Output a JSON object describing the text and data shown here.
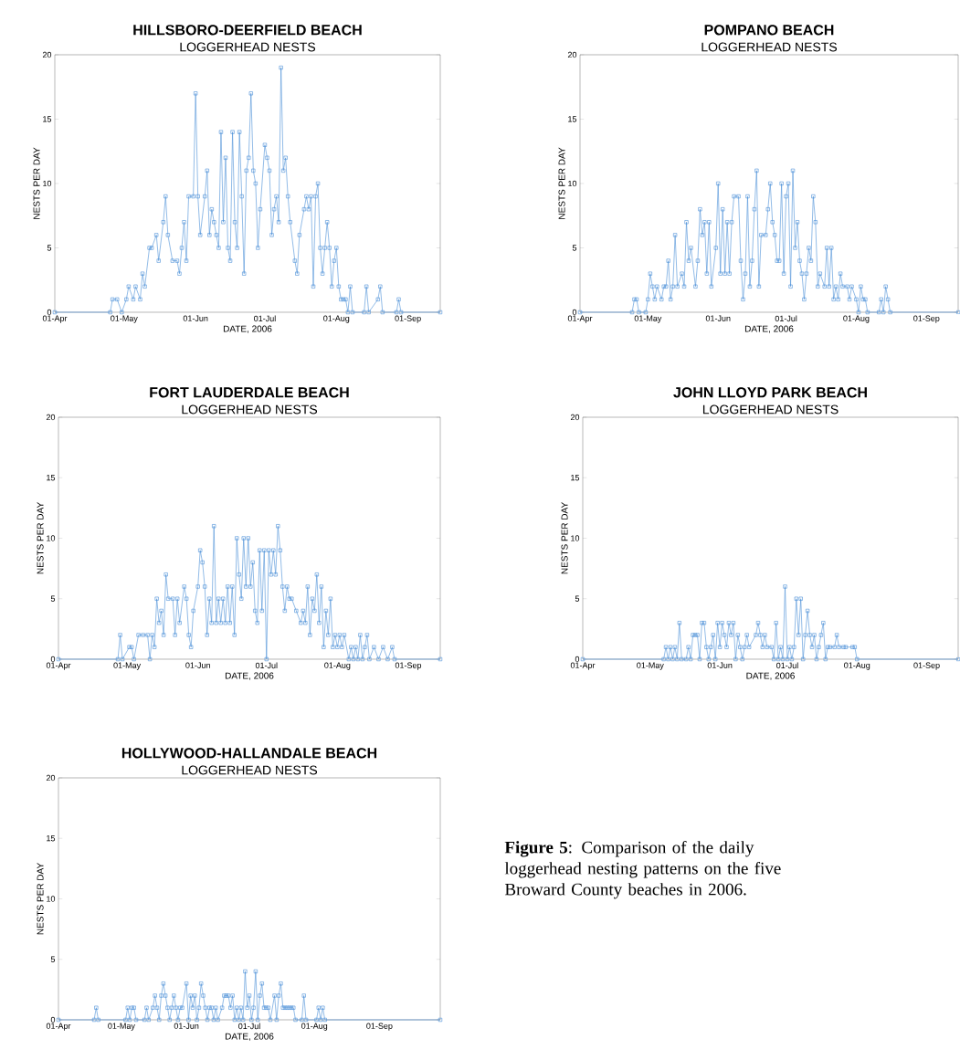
{
  "chart_data": [
    {
      "type": "line",
      "title": "HILLSBORO-DEERFIELD  BEACH",
      "subtitle": "LOGGERHEAD NESTS",
      "xlabel": "DATE, 2006",
      "ylabel": "NESTS PER DAY",
      "color": "#4a8fd6",
      "marker": "square",
      "line_style": "solid",
      "xlim": [
        "2006-04-01",
        "2006-09-15"
      ],
      "ylim": [
        0,
        20
      ],
      "yticks": [
        0,
        5,
        10,
        15,
        20
      ],
      "xticks": [
        {
          "value": "2006-04-01",
          "label": "01-Apr"
        },
        {
          "value": "2006-05-01",
          "label": "01-May"
        },
        {
          "value": "2006-06-01",
          "label": "01-Jun"
        },
        {
          "value": "2006-07-01",
          "label": "01-Jul"
        },
        {
          "value": "2006-08-01",
          "label": "01-Aug"
        },
        {
          "value": "2006-09-01",
          "label": "01-Sep"
        }
      ],
      "x": [
        "2006-04-01",
        "2006-04-25",
        "2006-04-26",
        "2006-04-28",
        "2006-04-30",
        "2006-05-02",
        "2006-05-03",
        "2006-05-05",
        "2006-05-06",
        "2006-05-08",
        "2006-05-09",
        "2006-05-10",
        "2006-05-12",
        "2006-05-13",
        "2006-05-15",
        "2006-05-16",
        "2006-05-18",
        "2006-05-19",
        "2006-05-20",
        "2006-05-22",
        "2006-05-24",
        "2006-05-25",
        "2006-05-26",
        "2006-05-27",
        "2006-05-28",
        "2006-05-29",
        "2006-05-31",
        "2006-06-01",
        "2006-06-02",
        "2006-06-03",
        "2006-06-05",
        "2006-06-06",
        "2006-06-07",
        "2006-06-08",
        "2006-06-09",
        "2006-06-10",
        "2006-06-11",
        "2006-06-12",
        "2006-06-13",
        "2006-06-14",
        "2006-06-15",
        "2006-06-16",
        "2006-06-17",
        "2006-06-18",
        "2006-06-19",
        "2006-06-20",
        "2006-06-21",
        "2006-06-22",
        "2006-06-23",
        "2006-06-24",
        "2006-06-25",
        "2006-06-26",
        "2006-06-27",
        "2006-06-28",
        "2006-06-29",
        "2006-07-01",
        "2006-07-02",
        "2006-07-03",
        "2006-07-04",
        "2006-07-05",
        "2006-07-06",
        "2006-07-07",
        "2006-07-08",
        "2006-07-09",
        "2006-07-10",
        "2006-07-11",
        "2006-07-12",
        "2006-07-14",
        "2006-07-15",
        "2006-07-16",
        "2006-07-18",
        "2006-07-19",
        "2006-07-20",
        "2006-07-21",
        "2006-07-22",
        "2006-07-23",
        "2006-07-24",
        "2006-07-25",
        "2006-07-26",
        "2006-07-27",
        "2006-07-28",
        "2006-07-29",
        "2006-07-30",
        "2006-07-31",
        "2006-08-01",
        "2006-08-02",
        "2006-08-03",
        "2006-08-04",
        "2006-08-05",
        "2006-08-06",
        "2006-08-07",
        "2006-08-08",
        "2006-08-13",
        "2006-08-14",
        "2006-08-15",
        "2006-08-19",
        "2006-08-20",
        "2006-08-21",
        "2006-08-27",
        "2006-08-28",
        "2006-08-29",
        "2006-09-15"
      ],
      "values": [
        0,
        0,
        1,
        1,
        0,
        1,
        2,
        1,
        2,
        1,
        3,
        2,
        5,
        5,
        6,
        4,
        7,
        9,
        6,
        4,
        4,
        3,
        5,
        7,
        4,
        9,
        9,
        17,
        9,
        6,
        9,
        11,
        6,
        8,
        7,
        6,
        5,
        14,
        7,
        12,
        5,
        4,
        14,
        7,
        5,
        14,
        9,
        3,
        11,
        12,
        17,
        11,
        10,
        5,
        8,
        13,
        12,
        11,
        6,
        8,
        9,
        7,
        19,
        11,
        12,
        9,
        7,
        4,
        3,
        6,
        8,
        9,
        8,
        9,
        2,
        9,
        10,
        5,
        3,
        5,
        7,
        5,
        2,
        4,
        5,
        2,
        1,
        1,
        1,
        0,
        2,
        0,
        0,
        2,
        0,
        1,
        2,
        0,
        0,
        1,
        0,
        0
      ]
    },
    {
      "type": "line",
      "title": "POMPANO  BEACH",
      "subtitle": "LOGGERHEAD NESTS",
      "xlabel": "DATE, 2006",
      "ylabel": "NESTS PER DAY",
      "color": "#4a8fd6",
      "marker": "square",
      "line_style": "solid",
      "xlim": [
        "2006-04-01",
        "2006-09-15"
      ],
      "ylim": [
        0,
        20
      ],
      "yticks": [
        0,
        5,
        10,
        15,
        20
      ],
      "xticks": [
        {
          "value": "2006-04-01",
          "label": "01-Apr"
        },
        {
          "value": "2006-05-01",
          "label": "01-May"
        },
        {
          "value": "2006-06-01",
          "label": "01-Jun"
        },
        {
          "value": "2006-07-01",
          "label": "01-Jul"
        },
        {
          "value": "2006-08-01",
          "label": "01-Aug"
        },
        {
          "value": "2006-09-01",
          "label": "01-Sep"
        }
      ],
      "x": [
        "2006-04-01",
        "2006-04-24",
        "2006-04-25",
        "2006-04-26",
        "2006-04-27",
        "2006-04-30",
        "2006-05-01",
        "2006-05-02",
        "2006-05-03",
        "2006-05-04",
        "2006-05-05",
        "2006-05-07",
        "2006-05-08",
        "2006-05-09",
        "2006-05-10",
        "2006-05-11",
        "2006-05-12",
        "2006-05-13",
        "2006-05-14",
        "2006-05-16",
        "2006-05-17",
        "2006-05-18",
        "2006-05-19",
        "2006-05-20",
        "2006-05-22",
        "2006-05-23",
        "2006-05-24",
        "2006-05-25",
        "2006-05-26",
        "2006-05-27",
        "2006-05-28",
        "2006-05-29",
        "2006-05-31",
        "2006-06-01",
        "2006-06-02",
        "2006-06-03",
        "2006-06-04",
        "2006-06-05",
        "2006-06-06",
        "2006-06-07",
        "2006-06-08",
        "2006-06-10",
        "2006-06-11",
        "2006-06-12",
        "2006-06-13",
        "2006-06-14",
        "2006-06-15",
        "2006-06-16",
        "2006-06-17",
        "2006-06-18",
        "2006-06-19",
        "2006-06-20",
        "2006-06-22",
        "2006-06-23",
        "2006-06-24",
        "2006-06-25",
        "2006-06-26",
        "2006-06-27",
        "2006-06-28",
        "2006-06-29",
        "2006-06-30",
        "2006-07-01",
        "2006-07-02",
        "2006-07-03",
        "2006-07-04",
        "2006-07-05",
        "2006-07-06",
        "2006-07-07",
        "2006-07-08",
        "2006-07-09",
        "2006-07-10",
        "2006-07-11",
        "2006-07-12",
        "2006-07-13",
        "2006-07-14",
        "2006-07-15",
        "2006-07-16",
        "2006-07-18",
        "2006-07-19",
        "2006-07-20",
        "2006-07-21",
        "2006-07-22",
        "2006-07-23",
        "2006-07-24",
        "2006-07-25",
        "2006-07-26",
        "2006-07-28",
        "2006-07-29",
        "2006-07-30",
        "2006-08-01",
        "2006-08-02",
        "2006-08-03",
        "2006-08-04",
        "2006-08-05",
        "2006-08-06",
        "2006-08-11",
        "2006-08-12",
        "2006-08-13",
        "2006-08-14",
        "2006-08-15",
        "2006-08-16",
        "2006-09-15"
      ],
      "values": [
        0,
        0,
        1,
        1,
        0,
        0,
        1,
        3,
        2,
        1,
        2,
        1,
        2,
        2,
        4,
        1,
        2,
        6,
        2,
        3,
        2,
        7,
        4,
        5,
        2,
        4,
        8,
        6,
        7,
        3,
        7,
        2,
        5,
        10,
        3,
        8,
        3,
        7,
        3,
        7,
        9,
        9,
        4,
        1,
        3,
        9,
        2,
        4,
        8,
        11,
        2,
        6,
        6,
        8,
        10,
        7,
        6,
        4,
        4,
        10,
        3,
        9,
        10,
        2,
        11,
        5,
        7,
        4,
        3,
        1,
        3,
        5,
        4,
        9,
        7,
        2,
        3,
        2,
        5,
        2,
        5,
        1,
        2,
        1,
        3,
        2,
        2,
        1,
        2,
        1,
        0,
        2,
        1,
        1,
        0,
        0,
        1,
        0,
        2,
        1,
        0,
        0
      ]
    },
    {
      "type": "line",
      "title": "FORT LAUDERDALE BEACH",
      "subtitle": "LOGGERHEAD NESTS",
      "xlabel": "DATE, 2006",
      "ylabel": "NESTS PER DAY",
      "color": "#4a8fd6",
      "marker": "square",
      "line_style": "solid",
      "xlim": [
        "2006-04-01",
        "2006-09-15"
      ],
      "ylim": [
        0,
        20
      ],
      "yticks": [
        0,
        5,
        10,
        15,
        20
      ],
      "xticks": [
        {
          "value": "2006-04-01",
          "label": "01-Apr"
        },
        {
          "value": "2006-05-01",
          "label": "01-May"
        },
        {
          "value": "2006-06-01",
          "label": "01-Jun"
        },
        {
          "value": "2006-07-01",
          "label": "01-Jul"
        },
        {
          "value": "2006-08-01",
          "label": "01-Aug"
        },
        {
          "value": "2006-09-01",
          "label": "01-Sep"
        }
      ],
      "x": [
        "2006-04-01",
        "2006-04-27",
        "2006-04-28",
        "2006-04-29",
        "2006-05-02",
        "2006-05-03",
        "2006-05-04",
        "2006-05-06",
        "2006-05-08",
        "2006-05-10",
        "2006-05-11",
        "2006-05-12",
        "2006-05-13",
        "2006-05-14",
        "2006-05-15",
        "2006-05-16",
        "2006-05-17",
        "2006-05-18",
        "2006-05-19",
        "2006-05-21",
        "2006-05-22",
        "2006-05-23",
        "2006-05-24",
        "2006-05-26",
        "2006-05-27",
        "2006-05-28",
        "2006-05-29",
        "2006-05-30",
        "2006-06-01",
        "2006-06-02",
        "2006-06-03",
        "2006-06-04",
        "2006-06-05",
        "2006-06-06",
        "2006-06-07",
        "2006-06-08",
        "2006-06-09",
        "2006-06-10",
        "2006-06-11",
        "2006-06-12",
        "2006-06-13",
        "2006-06-14",
        "2006-06-15",
        "2006-06-16",
        "2006-06-17",
        "2006-06-18",
        "2006-06-19",
        "2006-06-20",
        "2006-06-21",
        "2006-06-22",
        "2006-06-23",
        "2006-06-24",
        "2006-06-25",
        "2006-06-26",
        "2006-06-27",
        "2006-06-28",
        "2006-06-29",
        "2006-06-30",
        "2006-07-01",
        "2006-07-02",
        "2006-07-03",
        "2006-07-04",
        "2006-07-05",
        "2006-07-06",
        "2006-07-07",
        "2006-07-08",
        "2006-07-09",
        "2006-07-10",
        "2006-07-11",
        "2006-07-12",
        "2006-07-14",
        "2006-07-16",
        "2006-07-17",
        "2006-07-18",
        "2006-07-19",
        "2006-07-20",
        "2006-07-21",
        "2006-07-22",
        "2006-07-23",
        "2006-07-24",
        "2006-07-25",
        "2006-07-26",
        "2006-07-27",
        "2006-07-28",
        "2006-07-29",
        "2006-07-30",
        "2006-07-31",
        "2006-08-01",
        "2006-08-02",
        "2006-08-03",
        "2006-08-04",
        "2006-08-06",
        "2006-08-07",
        "2006-08-08",
        "2006-08-09",
        "2006-08-10",
        "2006-08-11",
        "2006-08-12",
        "2006-08-13",
        "2006-08-14",
        "2006-08-15",
        "2006-08-17",
        "2006-08-19",
        "2006-08-21",
        "2006-08-23",
        "2006-08-25",
        "2006-08-26",
        "2006-09-15"
      ],
      "values": [
        0,
        0,
        2,
        0,
        1,
        1,
        0,
        2,
        2,
        2,
        0,
        2,
        1,
        5,
        3,
        4,
        2,
        7,
        5,
        5,
        2,
        5,
        3,
        6,
        5,
        2,
        1,
        4,
        6,
        9,
        8,
        6,
        2,
        5,
        3,
        11,
        3,
        5,
        3,
        5,
        3,
        6,
        3,
        6,
        2,
        10,
        7,
        5,
        10,
        6,
        10,
        6,
        8,
        4,
        3,
        9,
        4,
        9,
        0,
        9,
        7,
        9,
        7,
        11,
        9,
        6,
        4,
        6,
        5,
        5,
        4,
        3,
        4,
        3,
        6,
        2,
        5,
        4,
        7,
        3,
        6,
        1,
        4,
        2,
        5,
        1,
        2,
        1,
        2,
        1,
        2,
        0,
        1,
        0,
        1,
        0,
        2,
        0,
        1,
        2,
        0,
        1,
        0,
        1,
        0,
        1,
        0,
        0
      ]
    },
    {
      "type": "line",
      "title": "JOHN LLOYD PARK BEACH",
      "subtitle": "LOGGERHEAD NESTS",
      "xlabel": "DATE, 2006",
      "ylabel": "NESTS PER DAY",
      "color": "#4a8fd6",
      "marker": "square",
      "line_style": "solid",
      "xlim": [
        "2006-04-01",
        "2006-09-15"
      ],
      "ylim": [
        0,
        20
      ],
      "yticks": [
        0,
        5,
        10,
        15,
        20
      ],
      "xticks": [
        {
          "value": "2006-04-01",
          "label": "01-Apr"
        },
        {
          "value": "2006-05-01",
          "label": "01-May"
        },
        {
          "value": "2006-06-01",
          "label": "01-Jun"
        },
        {
          "value": "2006-07-01",
          "label": "01-Jul"
        },
        {
          "value": "2006-08-01",
          "label": "01-Aug"
        },
        {
          "value": "2006-09-01",
          "label": "01-Sep"
        }
      ],
      "x": [
        "2006-04-01",
        "2006-05-07",
        "2006-05-08",
        "2006-05-09",
        "2006-05-10",
        "2006-05-11",
        "2006-05-12",
        "2006-05-13",
        "2006-05-14",
        "2006-05-15",
        "2006-05-17",
        "2006-05-18",
        "2006-05-19",
        "2006-05-20",
        "2006-05-21",
        "2006-05-22",
        "2006-05-23",
        "2006-05-24",
        "2006-05-25",
        "2006-05-26",
        "2006-05-27",
        "2006-05-28",
        "2006-05-29",
        "2006-05-30",
        "2006-05-31",
        "2006-06-01",
        "2006-06-02",
        "2006-06-03",
        "2006-06-04",
        "2006-06-05",
        "2006-06-06",
        "2006-06-07",
        "2006-06-08",
        "2006-06-09",
        "2006-06-10",
        "2006-06-11",
        "2006-06-12",
        "2006-06-13",
        "2006-06-14",
        "2006-06-17",
        "2006-06-18",
        "2006-06-19",
        "2006-06-20",
        "2006-06-21",
        "2006-06-22",
        "2006-06-24",
        "2006-06-25",
        "2006-06-26",
        "2006-06-27",
        "2006-06-28",
        "2006-06-29",
        "2006-06-30",
        "2006-07-01",
        "2006-07-02",
        "2006-07-03",
        "2006-07-04",
        "2006-07-05",
        "2006-07-06",
        "2006-07-07",
        "2006-07-08",
        "2006-07-09",
        "2006-07-10",
        "2006-07-11",
        "2006-07-12",
        "2006-07-13",
        "2006-07-14",
        "2006-07-15",
        "2006-07-16",
        "2006-07-17",
        "2006-07-18",
        "2006-07-19",
        "2006-07-20",
        "2006-07-22",
        "2006-07-23",
        "2006-07-24",
        "2006-07-26",
        "2006-07-27",
        "2006-07-30",
        "2006-07-31",
        "2006-08-01",
        "2006-09-15"
      ],
      "values": [
        0,
        0,
        1,
        0,
        1,
        0,
        1,
        0,
        3,
        0,
        0,
        1,
        0,
        2,
        2,
        2,
        0,
        3,
        3,
        1,
        0,
        1,
        2,
        0,
        3,
        1,
        3,
        2,
        1,
        3,
        2,
        3,
        0,
        2,
        1,
        0,
        1,
        2,
        1,
        2,
        3,
        2,
        1,
        2,
        1,
        1,
        0,
        3,
        0,
        1,
        0,
        6,
        0,
        1,
        0,
        1,
        5,
        2,
        5,
        0,
        2,
        4,
        2,
        1,
        2,
        0,
        1,
        2,
        3,
        0,
        1,
        1,
        1,
        2,
        1,
        1,
        1,
        1,
        1,
        0,
        0
      ]
    },
    {
      "type": "line",
      "title": "HOLLYWOOD-HALLANDALE BEACH",
      "subtitle": "LOGGERHEAD NESTS",
      "xlabel": "DATE, 2006",
      "ylabel": "NESTS PER DAY",
      "color": "#4a8fd6",
      "marker": "square",
      "line_style": "solid",
      "xlim": [
        "2006-04-01",
        "2006-09-30"
      ],
      "ylim": [
        0,
        20
      ],
      "yticks": [
        0,
        5,
        10,
        15,
        20
      ],
      "xticks": [
        {
          "value": "2006-04-01",
          "label": "01-Apr"
        },
        {
          "value": "2006-05-01",
          "label": "01-May"
        },
        {
          "value": "2006-06-01",
          "label": "01-Jun"
        },
        {
          "value": "2006-07-01",
          "label": "01-Jul"
        },
        {
          "value": "2006-08-01",
          "label": "01-Aug"
        },
        {
          "value": "2006-09-01",
          "label": "01-Sep"
        }
      ],
      "annotations": [
        "**Figure 5**: Comparison of the daily loggerhead nesting patterns on the five Broward County beaches in 2006."
      ],
      "x": [
        "2006-04-01",
        "2006-04-18",
        "2006-04-19",
        "2006-04-20",
        "2006-05-03",
        "2006-05-04",
        "2006-05-05",
        "2006-05-06",
        "2006-05-07",
        "2006-05-08",
        "2006-05-12",
        "2006-05-13",
        "2006-05-14",
        "2006-05-16",
        "2006-05-17",
        "2006-05-18",
        "2006-05-19",
        "2006-05-20",
        "2006-05-21",
        "2006-05-22",
        "2006-05-23",
        "2006-05-24",
        "2006-05-25",
        "2006-05-26",
        "2006-05-27",
        "2006-05-28",
        "2006-05-29",
        "2006-05-30",
        "2006-06-01",
        "2006-06-02",
        "2006-06-03",
        "2006-06-04",
        "2006-06-05",
        "2006-06-06",
        "2006-06-07",
        "2006-06-08",
        "2006-06-09",
        "2006-06-10",
        "2006-06-11",
        "2006-06-12",
        "2006-06-13",
        "2006-06-14",
        "2006-06-15",
        "2006-06-16",
        "2006-06-18",
        "2006-06-19",
        "2006-06-20",
        "2006-06-21",
        "2006-06-22",
        "2006-06-23",
        "2006-06-24",
        "2006-06-25",
        "2006-06-26",
        "2006-06-27",
        "2006-06-28",
        "2006-06-29",
        "2006-06-30",
        "2006-07-01",
        "2006-07-02",
        "2006-07-03",
        "2006-07-04",
        "2006-07-05",
        "2006-07-06",
        "2006-07-07",
        "2006-07-08",
        "2006-07-09",
        "2006-07-10",
        "2006-07-11",
        "2006-07-13",
        "2006-07-14",
        "2006-07-15",
        "2006-07-16",
        "2006-07-17",
        "2006-07-18",
        "2006-07-19",
        "2006-07-20",
        "2006-07-21",
        "2006-07-22",
        "2006-07-23",
        "2006-07-26",
        "2006-07-27",
        "2006-07-28",
        "2006-08-02",
        "2006-08-03",
        "2006-08-04",
        "2006-08-05",
        "2006-08-06",
        "2006-09-30"
      ],
      "values": [
        0,
        0,
        1,
        0,
        0,
        1,
        0,
        1,
        1,
        0,
        0,
        1,
        0,
        1,
        2,
        1,
        0,
        2,
        3,
        2,
        1,
        0,
        1,
        2,
        1,
        0,
        1,
        1,
        3,
        0,
        2,
        1,
        2,
        0,
        1,
        3,
        2,
        1,
        0,
        1,
        1,
        0,
        1,
        0,
        1,
        2,
        2,
        2,
        1,
        2,
        0,
        1,
        0,
        1,
        0,
        4,
        1,
        2,
        0,
        1,
        4,
        0,
        2,
        3,
        1,
        1,
        1,
        0,
        2,
        0,
        2,
        3,
        1,
        1,
        1,
        1,
        1,
        1,
        0,
        0,
        2,
        0,
        0,
        1,
        0,
        1,
        0,
        0
      ]
    }
  ]
}
